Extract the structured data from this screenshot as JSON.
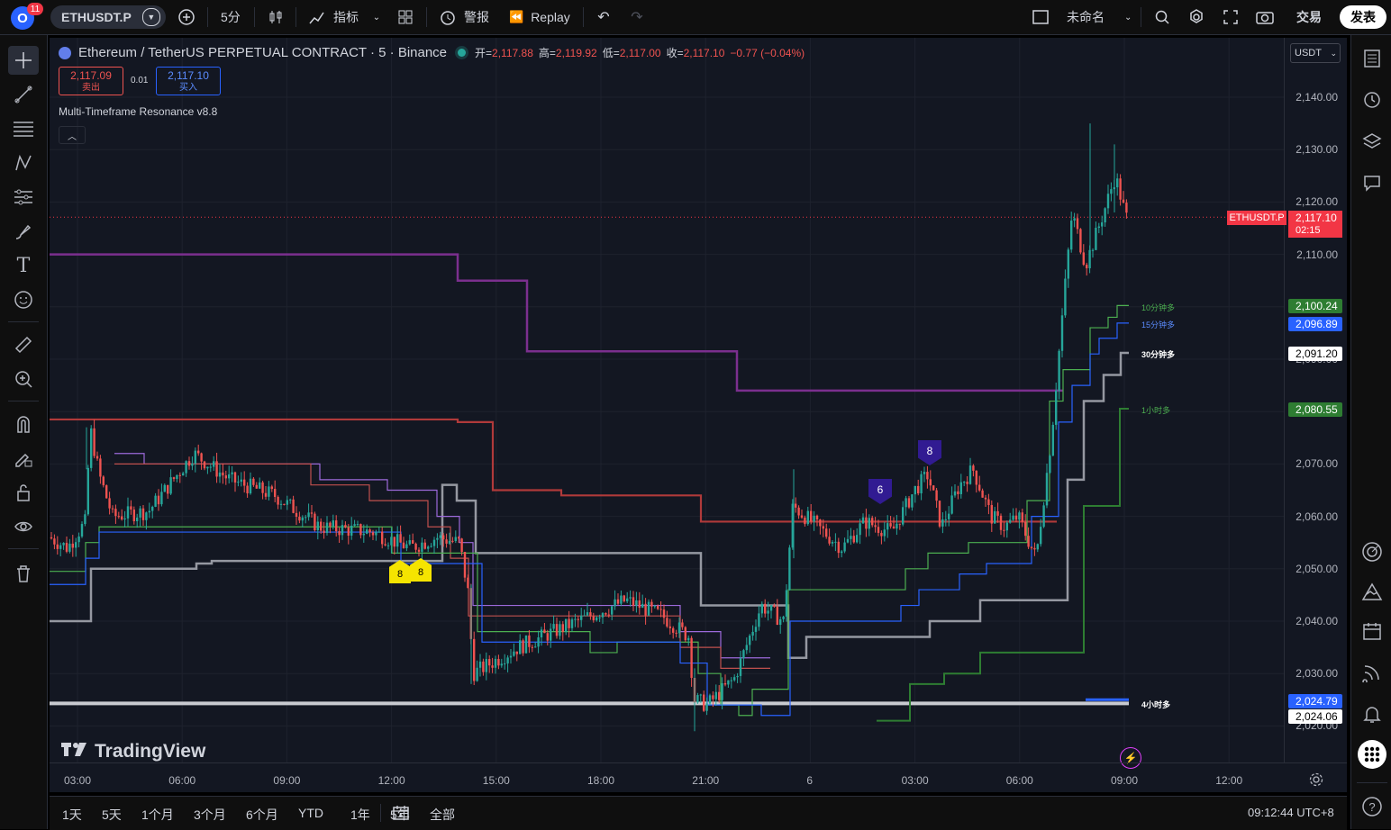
{
  "topbar": {
    "avatar_letter": "O",
    "notif_count": "11",
    "symbol": "ETHUSDT.P",
    "interval": "5分",
    "indicators": "指标",
    "alert": "警报",
    "replay": "Replay",
    "layout_name": "未命名",
    "trade": "交易",
    "publish": "发表"
  },
  "legend": {
    "title": "Ethereum / TetherUS PERPETUAL CONTRACT · 5 · Binance",
    "open_label": "开=",
    "open": "2,117.88",
    "high_label": "高=",
    "high": "2,119.92",
    "low_label": "低=",
    "low": "2,117.00",
    "close_label": "收=",
    "close": "2,117.10",
    "change": "−0.77 (−0.04%)",
    "sell_price": "2,117.09",
    "sell_label": "卖出",
    "spread": "0.01",
    "buy_price": "2,117.10",
    "buy_label": "买入",
    "indicator_name": "Multi-Timeframe Resonance v8.8"
  },
  "currency": "USDT",
  "price_axis": [
    "2,140.00",
    "2,130.00",
    "2,120.00",
    "2,110.00",
    "2,100.00",
    "2,090.00",
    "2,080.00",
    "2,070.00",
    "2,060.00",
    "2,050.00",
    "2,040.00",
    "2,030.00",
    "2,020.00"
  ],
  "time_axis": [
    "03:00",
    "06:00",
    "09:00",
    "12:00",
    "15:00",
    "18:00",
    "21:00",
    "6",
    "03:00",
    "06:00",
    "09:00",
    "12:00"
  ],
  "price_tags": {
    "symbol_tag": "ETHUSDT.P",
    "last": "2,117.10",
    "countdown": "02:15",
    "tf10": "2,100.24",
    "tf15": "2,096.89",
    "tf30": "2,091.20",
    "tf60": "2,080.55",
    "tf240a": "2,024.79",
    "tf240b": "2,024.06"
  },
  "level_labels": {
    "tf10": "10分钟多",
    "tf15": "15分钟多",
    "tf30": "30分钟多",
    "tf60": "1小时多",
    "tf240": "4小时多"
  },
  "markers": [
    "8",
    "8",
    "6",
    "8"
  ],
  "watermark": "TradingView",
  "ranges": [
    "1天",
    "5天",
    "1个月",
    "3个月",
    "6个月",
    "YTD",
    "1年",
    "5年",
    "全部"
  ],
  "clock": "09:12:44 UTC+8",
  "colors": {
    "up": "#26a69a",
    "down": "#ef5350",
    "bg": "#131722",
    "purple": "#7b2f8e",
    "red": "#b03a3a",
    "grey": "#9598a1",
    "green": "#4caf50",
    "blue": "#2962ff"
  }
}
